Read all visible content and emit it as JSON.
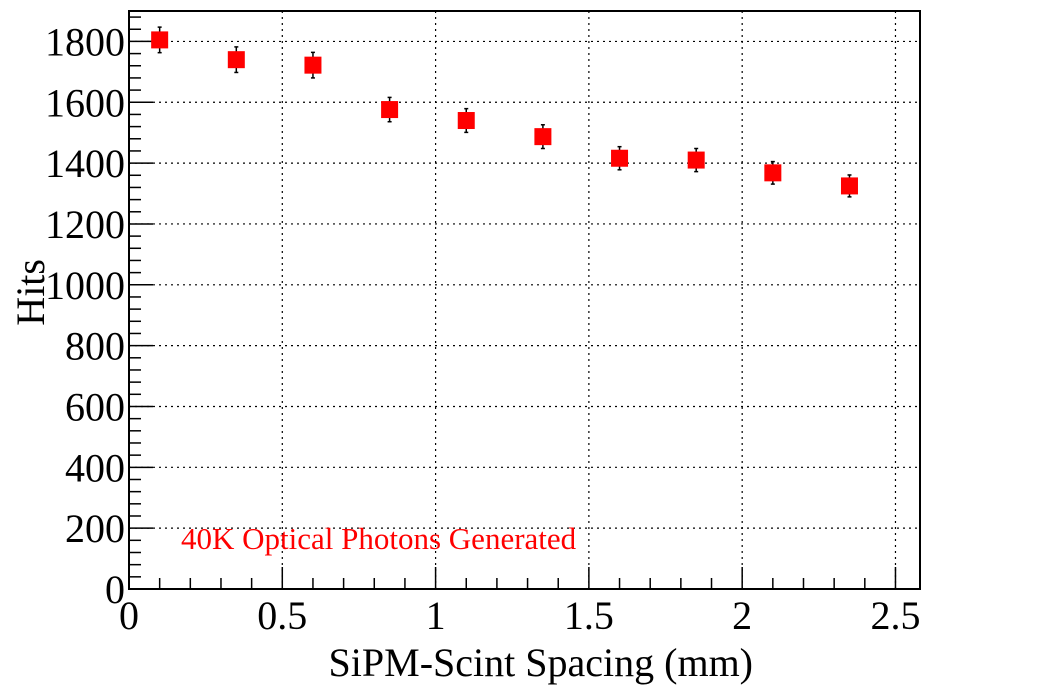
{
  "chart_data": {
    "type": "scatter",
    "title": "",
    "xlabel": "SiPM-Scint Spacing (mm)",
    "ylabel": "Hits",
    "xlim": [
      0,
      2.58
    ],
    "ylim": [
      0,
      1900
    ],
    "grid": true,
    "x_ticks": [
      0,
      0.5,
      1,
      1.5,
      2,
      2.5
    ],
    "x_tick_labels": [
      "0",
      "0.5",
      "1",
      "1.5",
      "2",
      "2.5"
    ],
    "y_ticks": [
      0,
      200,
      400,
      600,
      800,
      1000,
      1200,
      1400,
      1600,
      1800
    ],
    "y_tick_labels": [
      "0",
      "200",
      "400",
      "600",
      "800",
      "1000",
      "1200",
      "1400",
      "1600",
      "1800"
    ],
    "annotation": "40K Optical Photons Generated",
    "marker_color": "#ff0000",
    "annotation_color": "#ff0000",
    "series": [
      {
        "x": [
          0.1,
          0.35,
          0.6,
          0.85,
          1.1,
          1.35,
          1.6,
          1.85,
          2.1,
          2.35
        ],
        "y": [
          1805,
          1740,
          1722,
          1576,
          1540,
          1487,
          1416,
          1410,
          1368,
          1325
        ],
        "yerr": [
          42,
          42,
          42,
          40,
          39,
          39,
          38,
          38,
          37,
          36
        ]
      }
    ]
  }
}
